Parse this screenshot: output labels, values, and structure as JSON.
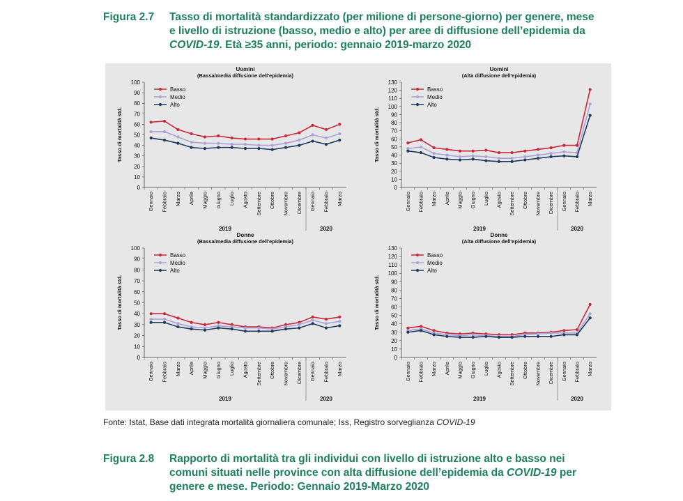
{
  "figure_27": {
    "number": "Figura 2.7",
    "title_line1": "Tasso di mortalità standardizzato (per milione di persone-giorno) per genere, mese",
    "title_line2": "e livello di istruzione (basso, medio e alto) per aree di diffusione dell’epidemia da",
    "title_line3_italic": "COVID-19",
    "title_line3_rest": ". Età ≥35 anni, periodo: gennaio 2019-marzo 2020"
  },
  "source": {
    "text": "Fonte: Istat, Base dati integrata mortalità giornaliera comunale; Iss, Registro sorveglianza ",
    "italic": "COVID-19"
  },
  "figure_28": {
    "number": "Figura 2.8",
    "title_line1": "Rapporto di mortalità tra gli individui con livello di istruzione alto e basso nei",
    "title_line2_a": "comuni situati nelle province con alta diffusione dell’epidemia da ",
    "title_line2_italic": "COVID-19",
    "title_line2_b": " per",
    "title_line3": "genere e mese. Periodo: Gennaio 2019-Marzo 2020"
  },
  "colors": {
    "basso": "#c8283c",
    "medio": "#a9a3d8",
    "alto": "#1c3a5e",
    "heading": "#1e7f5f"
  },
  "chart_data": [
    {
      "type": "line",
      "title": "Uomini",
      "subtitle": "(Bassa/media diffusione dell'epidemia)",
      "ylabel": "Tasso di mortalità std.",
      "ylim": [
        0,
        100
      ],
      "ystep": 10,
      "categories": [
        "Gennaio",
        "Febbraio",
        "Marzo",
        "Aprile",
        "Maggio",
        "Giugno",
        "Luglio",
        "Agosto",
        "Settembre",
        "Ottobre",
        "Novembre",
        "Dicembre",
        "Gennaio",
        "Febbraio",
        "Marzo"
      ],
      "year_labels": [
        "2019",
        "2020"
      ],
      "legend_position": "top-left",
      "series": [
        {
          "name": "Basso",
          "values": [
            62,
            63,
            55,
            51,
            48,
            49,
            47,
            46,
            46,
            46,
            49,
            52,
            59,
            55,
            60
          ]
        },
        {
          "name": "Medio",
          "values": [
            53,
            53,
            48,
            43,
            42,
            42,
            41,
            41,
            40,
            40,
            42,
            45,
            50,
            47,
            51
          ]
        },
        {
          "name": "Alto",
          "values": [
            47,
            45,
            42,
            38,
            37,
            38,
            38,
            37,
            37,
            36,
            38,
            40,
            44,
            41,
            45
          ]
        }
      ]
    },
    {
      "type": "line",
      "title": "Uomini",
      "subtitle": "(Alta diffusione dell'epidemia)",
      "ylabel": "Tasso di mortalità std.",
      "ylim": [
        0,
        130
      ],
      "ystep": 10,
      "categories": [
        "Gennaio",
        "Febbraio",
        "Marzo",
        "Aprile",
        "Maggio",
        "Giugno",
        "Luglio",
        "Agosto",
        "Settembre",
        "Ottobre",
        "Novembre",
        "Dicembre",
        "Gennaio",
        "Febbraio",
        "Marzo"
      ],
      "year_labels": [
        "2019",
        "2020"
      ],
      "legend_position": "top-left",
      "series": [
        {
          "name": "Basso",
          "values": [
            55,
            59,
            49,
            47,
            45,
            45,
            46,
            43,
            43,
            45,
            47,
            49,
            52,
            52,
            121
          ]
        },
        {
          "name": "Medio",
          "values": [
            48,
            50,
            42,
            40,
            38,
            39,
            38,
            36,
            36,
            38,
            40,
            42,
            44,
            43,
            103
          ]
        },
        {
          "name": "Alto",
          "values": [
            45,
            43,
            37,
            35,
            34,
            35,
            33,
            32,
            32,
            34,
            36,
            38,
            39,
            38,
            89
          ]
        }
      ]
    },
    {
      "type": "line",
      "title": "Donne",
      "subtitle": "(Bassa/media diffusione dell'epidemia)",
      "ylabel": "Tasso di mortalità std.",
      "ylim": [
        0,
        100
      ],
      "ystep": 10,
      "categories": [
        "Gennaio",
        "Febbraio",
        "Marzo",
        "Aprile",
        "Maggio",
        "Giugno",
        "Luglio",
        "Agosto",
        "Settembre",
        "Ottobre",
        "Novembre",
        "Dicembre",
        "Gennaio",
        "Febbraio",
        "Marzo"
      ],
      "year_labels": [
        "2019",
        "2020"
      ],
      "legend_position": "top-left",
      "series": [
        {
          "name": "Basso",
          "values": [
            40,
            40,
            36,
            32,
            30,
            32,
            30,
            28,
            28,
            27,
            30,
            32,
            37,
            35,
            37
          ]
        },
        {
          "name": "Medio",
          "values": [
            35,
            35,
            31,
            28,
            27,
            29,
            28,
            27,
            27,
            26,
            28,
            30,
            34,
            31,
            33
          ]
        },
        {
          "name": "Alto",
          "values": [
            32,
            32,
            28,
            26,
            25,
            27,
            26,
            24,
            24,
            24,
            26,
            27,
            31,
            27,
            29
          ]
        }
      ]
    },
    {
      "type": "line",
      "title": "Donne",
      "subtitle": "(Alta diffusione dell'epidemia)",
      "ylabel": "Tasso di mortalità std.",
      "ylim": [
        0,
        130
      ],
      "ystep": 10,
      "categories": [
        "Gennaio",
        "Febbraio",
        "Marzo",
        "Aprile",
        "Maggio",
        "Giugno",
        "Luglio",
        "Agosto",
        "Settembre",
        "Ottobre",
        "Novembre",
        "Dicembre",
        "Gennaio",
        "Febbraio",
        "Marzo"
      ],
      "year_labels": [
        "2019",
        "2020"
      ],
      "legend_position": "top-left",
      "series": [
        {
          "name": "Basso",
          "values": [
            35,
            37,
            32,
            29,
            28,
            29,
            28,
            27,
            27,
            29,
            29,
            30,
            32,
            33,
            63
          ]
        },
        {
          "name": "Medio",
          "values": [
            32,
            34,
            29,
            27,
            26,
            27,
            26,
            25,
            25,
            27,
            28,
            29,
            29,
            29,
            52
          ]
        },
        {
          "name": "Alto",
          "values": [
            30,
            32,
            27,
            25,
            24,
            24,
            25,
            24,
            24,
            25,
            25,
            25,
            27,
            27,
            47
          ]
        }
      ]
    }
  ]
}
